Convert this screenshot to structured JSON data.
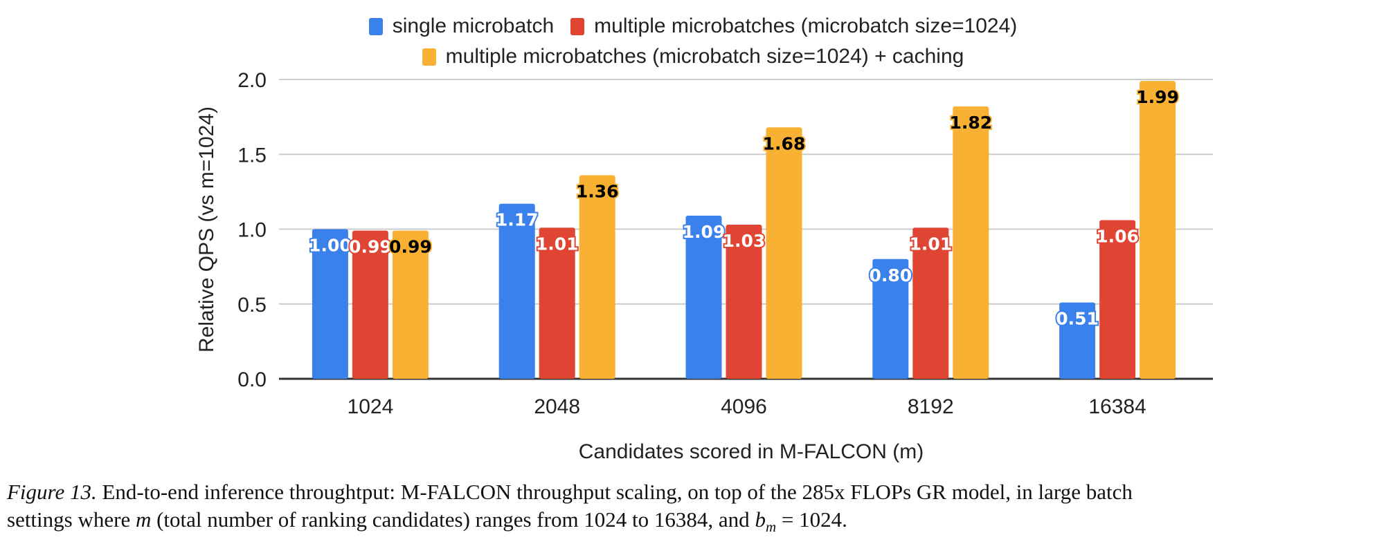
{
  "chart_data": {
    "type": "bar",
    "title": "",
    "xlabel": "Candidates scored in M-FALCON (m)",
    "ylabel": "Relative QPS (vs m=1024)",
    "ylim": [
      0,
      2.0
    ],
    "yticks": [
      "0.0",
      "0.5",
      "1.0",
      "1.5",
      "2.0"
    ],
    "grid": true,
    "legend_position": "top-center",
    "categories": [
      "1024",
      "2048",
      "4096",
      "8192",
      "16384"
    ],
    "series": [
      {
        "name": "single microbatch",
        "color": "#3a81ec",
        "label_color": "#ffffff",
        "values": [
          1.0,
          1.17,
          1.09,
          0.8,
          0.51
        ],
        "labels": [
          "1.00",
          "1.17",
          "1.09",
          "0.80",
          "0.51"
        ]
      },
      {
        "name": "multiple microbatches (microbatch size=1024)",
        "color": "#e04534",
        "label_color": "#ffffff",
        "values": [
          0.99,
          1.01,
          1.03,
          1.01,
          1.06
        ],
        "labels": [
          "0.99",
          "1.01",
          "1.03",
          "1.01",
          "1.06"
        ]
      },
      {
        "name": "multiple microbatches (microbatch size=1024) + caching",
        "color": "#f8b133",
        "label_color": "#000000",
        "values": [
          0.99,
          1.36,
          1.68,
          1.82,
          1.99
        ],
        "labels": [
          "0.99",
          "1.36",
          "1.68",
          "1.82",
          "1.99"
        ]
      }
    ]
  },
  "caption": {
    "figure_label": "Figure 13.",
    "line1": " End-to-end inference throughtput:  M-FALCON throughput scaling, on top of the 285x FLOPs GR model, in large batch",
    "line2_a": "settings where ",
    "line2_m": "m",
    "line2_b": " (total number of ranking candidates) ranges from 1024 to 16384, and ",
    "line2_bm": "b",
    "line2_sub": "m",
    "line2_c": " = 1024."
  }
}
